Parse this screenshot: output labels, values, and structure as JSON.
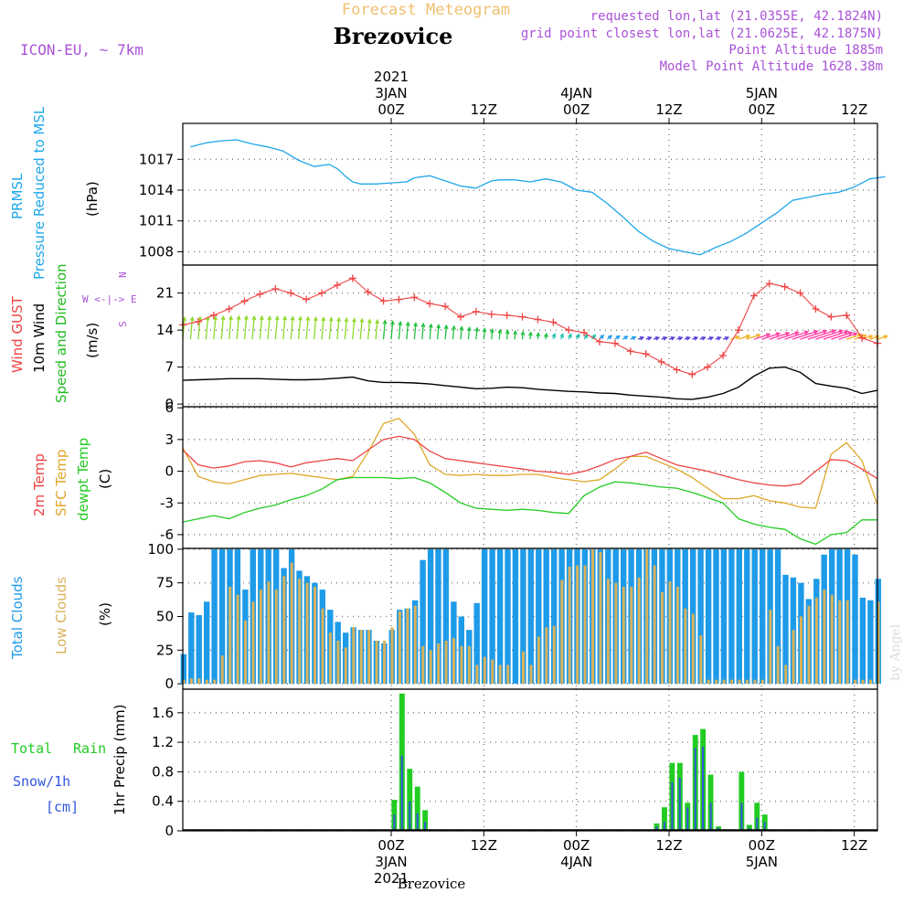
{
  "header": {
    "title": "Forecast Meteogram",
    "location": "Brezovice",
    "model": "ICON-EU, ~ 7km",
    "requested": "requested lon,lat (21.0355E, 42.1824N)",
    "grid_point": "grid point closest lon,lat (21.0625E, 42.1875N)",
    "point_altitude": "Point Altitude 1885m",
    "model_altitude": "Model Point Altitude 1628.38m",
    "watermark": "by Angel",
    "footer": "Brezovice"
  },
  "time_axis": {
    "range_hours": [
      -27,
      63
    ],
    "top_labels": [
      {
        "t": 0,
        "lines": [
          "2021",
          "3JAN",
          "00Z"
        ]
      },
      {
        "t": 12,
        "lines": [
          "12Z"
        ]
      },
      {
        "t": 24,
        "lines": [
          "4JAN",
          "00Z"
        ]
      },
      {
        "t": 36,
        "lines": [
          "12Z"
        ]
      },
      {
        "t": 48,
        "lines": [
          "5JAN",
          "00Z"
        ]
      },
      {
        "t": 60,
        "lines": [
          "12Z"
        ]
      }
    ],
    "bottom_labels": [
      {
        "t": 0,
        "lines": [
          "00Z",
          "3JAN",
          "2021"
        ]
      },
      {
        "t": 12,
        "lines": [
          "12Z"
        ]
      },
      {
        "t": 24,
        "lines": [
          "00Z",
          "4JAN"
        ]
      },
      {
        "t": 36,
        "lines": [
          "12Z"
        ]
      },
      {
        "t": 48,
        "lines": [
          "00Z",
          "5JAN"
        ]
      },
      {
        "t": 60,
        "lines": [
          "12Z"
        ]
      }
    ]
  },
  "colors": {
    "pressure": "#1ea7ea",
    "gust": "#ee4444",
    "wind": "#000000",
    "direction": "#22bb22",
    "temp2m": "#ee4444",
    "sfc": "#e0a628",
    "dew": "#22cc22",
    "total_cloud": "#1e9be8",
    "low_cloud": "#d8b25a",
    "rain": "#22cc22",
    "snow": "#3355dd",
    "purple": "#a952d8",
    "title": "#f0c070"
  },
  "panel_labels": {
    "pressure": {
      "lines": [
        "PRMSL",
        "Pressure Reduced to MSL"
      ],
      "unit": "(hPa)"
    },
    "wind": {
      "l1": "Wind GUST",
      "l2": "10m Wind",
      "l3": "Speed and Direction",
      "unit": "(m/s)",
      "compass_n": "N",
      "compass_row": "W <-|-> E",
      "compass_s": "S"
    },
    "temp": {
      "l1": "2m Temp",
      "l2": "SFC Temp",
      "l3": "dewpt Temp",
      "unit": "(C)"
    },
    "cloud": {
      "l1": "Total Clouds",
      "l2": "Low Clouds",
      "unit": "(%)"
    },
    "precip": {
      "l1": "Total",
      "l1b": "Rain",
      "l2": "Snow/1h",
      "l3": "[cm]",
      "unit": "1hr Precip (mm)"
    }
  },
  "chart_data": [
    {
      "type": "line",
      "name": "pressure",
      "yticks": [
        1008,
        1011,
        1014,
        1017
      ],
      "ylim": [
        1006.7,
        1020.5
      ],
      "x": [
        -26,
        -24,
        -22,
        -20,
        -18,
        -16,
        -14,
        -12,
        -10,
        -8,
        -7,
        -6,
        -5,
        -4,
        -2,
        0,
        2,
        3,
        5,
        7,
        9,
        11,
        13,
        14,
        16,
        18,
        20,
        22,
        24,
        26,
        28,
        30,
        32,
        34,
        36,
        38,
        40,
        42,
        44,
        46,
        48,
        50,
        52,
        54,
        56,
        58,
        60,
        62,
        64
      ],
      "values": [
        1018.2,
        1018.6,
        1018.8,
        1018.9,
        1018.5,
        1018.2,
        1017.8,
        1016.9,
        1016.3,
        1016.5,
        1016.1,
        1015.4,
        1014.8,
        1014.6,
        1014.6,
        1014.7,
        1014.8,
        1015.2,
        1015.4,
        1014.9,
        1014.4,
        1014.2,
        1014.9,
        1015.0,
        1015.0,
        1014.8,
        1015.1,
        1014.8,
        1014.0,
        1013.8,
        1012.7,
        1011.4,
        1010.0,
        1009.0,
        1008.3,
        1008.0,
        1007.7,
        1008.4,
        1009.0,
        1009.8,
        1010.8,
        1011.8,
        1013.0,
        1013.3,
        1013.6,
        1013.8,
        1014.3,
        1015.1,
        1015.3
      ]
    },
    {
      "type": "line",
      "name": "wind",
      "yticks": [
        0,
        7,
        14,
        21
      ],
      "ylim": [
        -0.5,
        26.3
      ],
      "x": [
        -27,
        -25,
        -23,
        -21,
        -19,
        -17,
        -15,
        -13,
        -11,
        -9,
        -7,
        -5,
        -3,
        -1,
        1,
        3,
        5,
        7,
        9,
        11,
        13,
        15,
        17,
        19,
        21,
        23,
        25,
        27,
        29,
        31,
        33,
        35,
        37,
        39,
        41,
        43,
        45,
        47,
        49,
        51,
        53,
        55,
        57,
        59,
        61,
        63
      ],
      "gust": [
        15.0,
        15.6,
        16.8,
        18.0,
        19.5,
        20.8,
        21.8,
        21.0,
        19.8,
        21.0,
        22.5,
        23.8,
        21.2,
        19.5,
        19.8,
        20.2,
        19.0,
        18.5,
        16.5,
        17.5,
        17.0,
        16.8,
        16.5,
        16.0,
        15.5,
        14.0,
        13.5,
        11.8,
        11.5,
        10.0,
        9.5,
        8.0,
        6.5,
        5.6,
        7.0,
        9.2,
        14.0,
        20.5,
        22.8,
        22.2,
        21.0,
        18.0,
        16.5,
        16.8,
        12.5,
        11.5
      ],
      "speed": [
        4.5,
        4.6,
        4.7,
        4.8,
        4.8,
        4.8,
        4.7,
        4.6,
        4.6,
        4.7,
        4.9,
        5.1,
        4.4,
        4.1,
        4.1,
        4.0,
        3.8,
        3.5,
        3.2,
        2.9,
        3.0,
        3.2,
        3.1,
        2.8,
        2.6,
        2.4,
        2.3,
        2.1,
        2.0,
        1.7,
        1.5,
        1.3,
        1.0,
        0.9,
        1.3,
        2.0,
        3.2,
        5.3,
        6.8,
        7.0,
        6.0,
        3.9,
        3.4,
        3.0,
        2.0,
        2.6
      ],
      "arrow_x": [
        -27,
        -26,
        -25,
        -24,
        -23,
        -22,
        -21,
        -20,
        -19,
        -18,
        -17,
        -16,
        -15,
        -14,
        -13,
        -12,
        -11,
        -10,
        -9,
        -8,
        -7,
        -6,
        -5,
        -4,
        -3,
        -2,
        -1,
        0,
        1,
        2,
        3,
        4,
        5,
        6,
        7,
        8,
        9,
        10,
        11,
        12,
        13,
        14,
        15,
        16,
        17,
        18,
        19,
        20,
        21,
        22,
        23,
        24,
        25,
        26,
        27,
        28,
        29,
        30,
        31,
        32,
        33,
        34,
        35,
        36,
        37,
        38,
        39,
        40,
        41,
        42,
        43,
        44,
        45,
        46,
        47,
        48,
        49,
        50,
        51,
        52,
        53,
        54,
        55,
        56,
        57,
        58,
        59,
        60,
        61,
        62,
        63
      ],
      "arrow_speed": [
        14.0,
        14.1,
        14.3,
        14.4,
        14.5,
        14.6,
        14.7,
        14.8,
        14.8,
        14.7,
        14.7,
        14.6,
        14.6,
        14.5,
        14.4,
        14.4,
        14.2,
        14.1,
        13.9,
        13.8,
        13.6,
        13.4,
        13.2,
        13.0,
        12.6,
        12.3,
        12.0,
        11.6,
        11.2,
        10.8,
        10.4,
        10.0,
        9.6,
        9.2,
        8.8,
        8.4,
        8.0,
        7.6,
        7.2,
        6.8,
        6.4,
        6.0,
        5.6,
        5.2,
        4.8,
        4.4,
        4.0,
        3.6,
        3.2,
        2.8,
        2.4,
        2.0,
        1.8,
        1.6,
        1.4,
        1.2,
        1.0,
        0.9,
        0.8,
        0.7,
        0.6,
        0.5,
        0.5,
        0.5,
        0.5,
        0.6,
        0.7,
        0.8,
        1.0,
        2.0,
        3.6,
        5.6,
        7.4,
        9.2,
        10.6,
        12.0,
        13.2,
        14.4,
        15.6,
        16.8,
        17.6,
        18.4,
        18.0,
        16.4,
        14.0,
        12.0,
        10.0,
        8.0,
        7.0,
        6.0,
        6.6
      ],
      "arrow_dir": [
        5,
        5,
        5,
        5,
        5,
        5,
        5,
        5,
        5,
        5,
        5,
        5,
        5,
        5,
        5,
        5,
        5,
        5,
        5,
        5,
        5,
        5,
        5,
        5,
        5,
        5,
        5,
        5,
        5,
        5,
        5,
        5,
        5,
        5,
        5,
        5,
        5,
        5,
        5,
        5,
        5,
        5,
        5,
        5,
        5,
        5,
        5,
        10,
        15,
        20,
        25,
        30,
        35,
        40,
        45,
        50,
        55,
        60,
        65,
        70,
        72,
        72,
        72,
        72,
        72,
        72,
        72,
        72,
        72,
        72,
        72,
        72,
        72,
        72,
        72,
        72,
        72,
        72,
        72,
        72,
        72,
        72,
        72,
        72,
        72,
        72,
        72,
        72,
        72,
        72,
        72
      ]
    },
    {
      "type": "line",
      "name": "temperature",
      "yticks": [
        -6,
        -3,
        0,
        3,
        6
      ],
      "ylim": [
        -7.3,
        6.1
      ],
      "x": [
        -27,
        -25,
        -23,
        -21,
        -19,
        -17,
        -15,
        -13,
        -11,
        -9,
        -7,
        -5,
        -3,
        -1,
        1,
        3,
        5,
        7,
        9,
        11,
        13,
        15,
        17,
        19,
        21,
        23,
        25,
        27,
        29,
        31,
        33,
        35,
        37,
        39,
        41,
        43,
        45,
        47,
        49,
        51,
        53,
        55,
        57,
        59,
        61,
        63
      ],
      "t2m": [
        2.0,
        0.6,
        0.3,
        0.5,
        0.9,
        1.0,
        0.8,
        0.4,
        0.8,
        1.0,
        1.2,
        1.0,
        2.0,
        3.0,
        3.3,
        3.0,
        1.9,
        1.2,
        1.0,
        0.8,
        0.6,
        0.4,
        0.2,
        0.0,
        -0.1,
        -0.3,
        0.0,
        0.5,
        1.1,
        1.4,
        1.8,
        1.2,
        0.6,
        0.3,
        0.0,
        -0.4,
        -0.8,
        -1.1,
        -1.3,
        -1.4,
        -1.2,
        0.0,
        1.1,
        1.0,
        0.2,
        -0.7
      ],
      "sfc": [
        2.2,
        -0.5,
        -1.0,
        -1.2,
        -0.8,
        -0.4,
        -0.3,
        -0.2,
        -0.4,
        -0.6,
        -0.8,
        -0.5,
        1.8,
        4.5,
        5.0,
        3.5,
        0.6,
        -0.3,
        -0.4,
        -0.3,
        -0.4,
        -0.4,
        -0.3,
        -0.3,
        -0.6,
        -0.8,
        -1.0,
        -0.8,
        0.2,
        1.4,
        1.4,
        0.8,
        0.2,
        -0.6,
        -1.6,
        -2.6,
        -2.6,
        -2.3,
        -2.8,
        -3.0,
        -3.4,
        -3.5,
        1.6,
        2.7,
        1.0,
        -3.2
      ],
      "dew": [
        -4.8,
        -4.5,
        -4.2,
        -4.5,
        -3.9,
        -3.5,
        -3.2,
        -2.7,
        -2.3,
        -1.7,
        -0.8,
        -0.6,
        -0.6,
        -0.6,
        -0.7,
        -0.6,
        -1.1,
        -2.0,
        -3.0,
        -3.5,
        -3.6,
        -3.7,
        -3.6,
        -3.7,
        -3.9,
        -4.0,
        -2.3,
        -1.5,
        -1.0,
        -1.1,
        -1.3,
        -1.5,
        -1.6,
        -2.0,
        -2.5,
        -3.0,
        -4.5,
        -5.0,
        -5.3,
        -5.5,
        -6.4,
        -6.9,
        -6.0,
        -5.8,
        -4.6,
        -4.6
      ]
    },
    {
      "type": "bar",
      "name": "clouds",
      "yticks": [
        0,
        25,
        50,
        75,
        100
      ],
      "ylim": [
        -4,
        100.6
      ],
      "x": [
        -27,
        -26,
        -25,
        -24,
        -23,
        -22,
        -21,
        -20,
        -19,
        -18,
        -17,
        -16,
        -15,
        -14,
        -13,
        -12,
        -11,
        -10,
        -9,
        -8,
        -7,
        -6,
        -5,
        -4,
        -3,
        -2,
        -1,
        0,
        1,
        2,
        3,
        4,
        5,
        6,
        7,
        8,
        9,
        10,
        11,
        12,
        13,
        14,
        15,
        16,
        17,
        18,
        19,
        20,
        21,
        22,
        23,
        24,
        25,
        26,
        27,
        28,
        29,
        30,
        31,
        32,
        33,
        34,
        35,
        36,
        37,
        38,
        39,
        40,
        41,
        42,
        43,
        44,
        45,
        46,
        47,
        48,
        49,
        50,
        51,
        52,
        53,
        54,
        55,
        56,
        57,
        58,
        59,
        60,
        61,
        62,
        63
      ],
      "total": [
        22,
        53,
        51,
        61,
        100,
        100,
        100,
        100,
        70,
        100,
        100,
        100,
        100,
        86,
        100,
        84,
        80,
        75,
        70,
        55,
        46,
        38,
        42,
        40,
        40,
        32,
        30,
        40,
        55,
        56,
        62,
        92,
        100,
        100,
        100,
        61,
        50,
        40,
        60,
        100,
        100,
        100,
        100,
        100,
        100,
        100,
        100,
        100,
        100,
        100,
        100,
        100,
        100,
        100,
        100,
        100,
        100,
        100,
        100,
        100,
        100,
        100,
        100,
        100,
        100,
        100,
        100,
        100,
        100,
        100,
        100,
        100,
        100,
        100,
        100,
        100,
        100,
        100,
        81,
        79,
        75,
        63,
        78,
        96,
        100,
        100,
        100,
        96,
        64,
        62,
        78
      ],
      "low": [
        3,
        4,
        4,
        3,
        3,
        21,
        72,
        66,
        47,
        61,
        70,
        76,
        70,
        80,
        90,
        78,
        75,
        72,
        56,
        38,
        32,
        27,
        42,
        40,
        40,
        32,
        32,
        42,
        54,
        56,
        58,
        28,
        25,
        30,
        32,
        34,
        28,
        28,
        14,
        20,
        18,
        14,
        14,
        0,
        24,
        14,
        35,
        42,
        43,
        77,
        87,
        88,
        88,
        100,
        98,
        78,
        75,
        72,
        72,
        79,
        100,
        88,
        68,
        76,
        72,
        56,
        52,
        36,
        3,
        3,
        3,
        3,
        3,
        3,
        3,
        3,
        55,
        28,
        14,
        40,
        50,
        58,
        64,
        70,
        66,
        62,
        62,
        3,
        3,
        3,
        61
      ]
    },
    {
      "type": "bar",
      "name": "precip",
      "yticks": [
        0,
        0.4,
        0.8,
        1.2,
        1.6
      ],
      "ytick_labels": [
        "0",
        "0.4",
        "0.8",
        "1.2",
        "1.6"
      ],
      "ylim": [
        0,
        1.92
      ],
      "x": [
        0,
        1,
        2,
        3,
        4,
        5,
        34,
        35,
        36,
        37,
        38,
        39,
        40,
        41,
        42,
        43,
        44,
        45,
        46,
        47,
        48,
        49,
        50
      ],
      "rain": [
        0.42,
        1.86,
        0.84,
        0.6,
        0.28,
        0.0,
        0.1,
        0.32,
        0.92,
        0.92,
        0.38,
        1.3,
        1.38,
        0.76,
        0.06,
        0.02,
        0.0,
        0.8,
        0.08,
        0.38,
        0.22,
        0.0,
        0.0
      ],
      "snow": [
        0.22,
        1.02,
        0.4,
        0.24,
        0.12,
        0.0,
        0.06,
        0.12,
        0.66,
        0.72,
        0.32,
        1.12,
        1.14,
        0.38,
        0.04,
        0.01,
        0.0,
        0.38,
        0.04,
        0.18,
        0.12,
        0.0,
        0.0
      ]
    }
  ]
}
